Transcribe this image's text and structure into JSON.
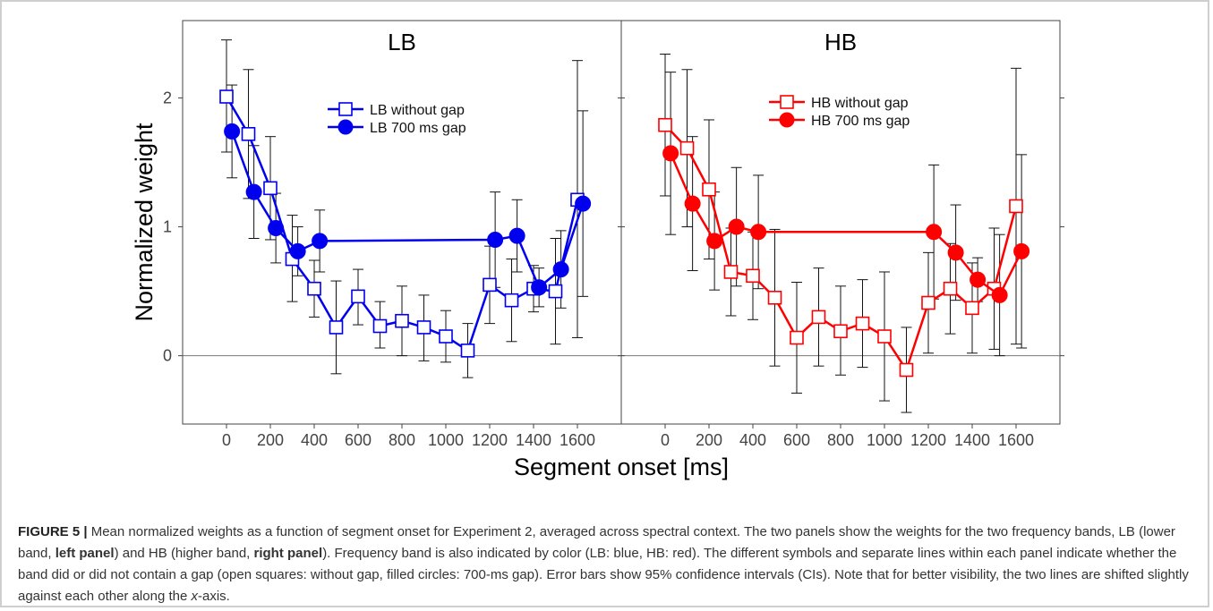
{
  "caption": {
    "label": "FIGURE 5 |",
    "parts": [
      {
        "t": " Mean normalized weights as a function of segment onset for Experiment 2, averaged across spectral context. The two panels show the weights for the two frequency bands, LB (lower band, ",
        "s": ""
      },
      {
        "t": "left panel",
        "s": "b"
      },
      {
        "t": ") and HB (higher band, ",
        "s": ""
      },
      {
        "t": "right panel",
        "s": "b"
      },
      {
        "t": "). Frequency band is also indicated by color (LB: blue, HB: red). The different symbols and separate lines within each panel indicate whether the band did or did not contain a gap (open squares: without gap, filled circles: 700-ms gap). Error bars show 95% confidence intervals (CIs). Note that for better visibility, the two lines are shifted slightly against each other along the ",
        "s": ""
      },
      {
        "t": "x",
        "s": "i"
      },
      {
        "t": "-axis.",
        "s": ""
      }
    ]
  },
  "chart_data": {
    "type": "line",
    "xlabel": "Segment onset [ms]",
    "ylabel": "Normalized weight",
    "xlim": [
      -200,
      1800
    ],
    "ylim": [
      -0.53,
      2.6
    ],
    "x_ticks": [
      0,
      200,
      400,
      600,
      800,
      1000,
      1200,
      1400,
      1600
    ],
    "y_ticks": [
      0,
      1,
      2
    ],
    "legend_position": "top-center",
    "panels": [
      {
        "title": "LB",
        "color": "#0000ee",
        "series": [
          {
            "name": "LB without gap",
            "marker": "open-square",
            "x": [
              0,
              100,
              200,
              300,
              400,
              500,
              600,
              700,
              800,
              900,
              1000,
              1100,
              1200,
              1300,
              1400,
              1500,
              1600
            ],
            "y": [
              2.01,
              1.72,
              1.3,
              0.75,
              0.52,
              0.22,
              0.46,
              0.23,
              0.27,
              0.22,
              0.15,
              0.04,
              0.55,
              0.43,
              0.52,
              0.5,
              1.21
            ],
            "lo": [
              1.58,
              1.22,
              0.9,
              0.42,
              0.3,
              -0.14,
              0.24,
              0.06,
              0.0,
              -0.04,
              -0.05,
              -0.17,
              0.25,
              0.11,
              0.34,
              0.09,
              0.14
            ],
            "hi": [
              2.45,
              2.22,
              1.7,
              1.09,
              0.74,
              0.58,
              0.67,
              0.42,
              0.54,
              0.47,
              0.35,
              0.25,
              0.85,
              0.75,
              0.7,
              0.91,
              2.29
            ]
          },
          {
            "name": "LB 700 ms gap",
            "marker": "filled-circle",
            "x": [
              25,
              125,
              225,
              325,
              425,
              1225,
              1325,
              1425,
              1525,
              1625
            ],
            "y": [
              1.74,
              1.27,
              0.99,
              0.81,
              0.89,
              0.9,
              0.93,
              0.53,
              0.67,
              1.18
            ],
            "lo": [
              1.38,
              0.91,
              0.72,
              0.62,
              0.65,
              0.53,
              0.65,
              0.38,
              0.37,
              0.46
            ],
            "hi": [
              2.1,
              1.63,
              1.26,
              1.0,
              1.13,
              1.27,
              1.21,
              0.68,
              0.97,
              1.9
            ]
          }
        ]
      },
      {
        "title": "HB",
        "color": "#ff0000",
        "series": [
          {
            "name": "HB without gap",
            "marker": "open-square",
            "x": [
              0,
              100,
              200,
              300,
              400,
              500,
              600,
              700,
              800,
              900,
              1000,
              1100,
              1200,
              1300,
              1400,
              1500,
              1600
            ],
            "y": [
              1.79,
              1.61,
              1.29,
              0.65,
              0.62,
              0.45,
              0.14,
              0.3,
              0.19,
              0.25,
              0.15,
              -0.11,
              0.41,
              0.52,
              0.37,
              0.52,
              1.16
            ],
            "lo": [
              1.24,
              1.0,
              0.75,
              0.31,
              0.28,
              -0.08,
              -0.29,
              -0.08,
              -0.15,
              -0.09,
              -0.35,
              -0.44,
              0.02,
              0.17,
              0.02,
              0.05,
              0.09
            ],
            "hi": [
              2.34,
              2.22,
              1.83,
              0.99,
              0.96,
              0.98,
              0.57,
              0.68,
              0.54,
              0.59,
              0.65,
              0.22,
              0.8,
              0.87,
              0.72,
              0.99,
              2.23
            ]
          },
          {
            "name": "HB 700 ms gap",
            "marker": "filled-circle",
            "x": [
              25,
              125,
              225,
              325,
              425,
              1225,
              1325,
              1425,
              1525,
              1625
            ],
            "y": [
              1.57,
              1.18,
              0.89,
              1.0,
              0.96,
              0.96,
              0.8,
              0.59,
              0.47,
              0.81
            ],
            "lo": [
              0.94,
              0.66,
              0.51,
              0.54,
              0.52,
              0.44,
              0.43,
              0.42,
              0.0,
              0.06
            ],
            "hi": [
              2.2,
              1.7,
              1.27,
              1.46,
              1.4,
              1.48,
              1.17,
              0.76,
              0.94,
              1.56
            ]
          }
        ]
      }
    ]
  }
}
